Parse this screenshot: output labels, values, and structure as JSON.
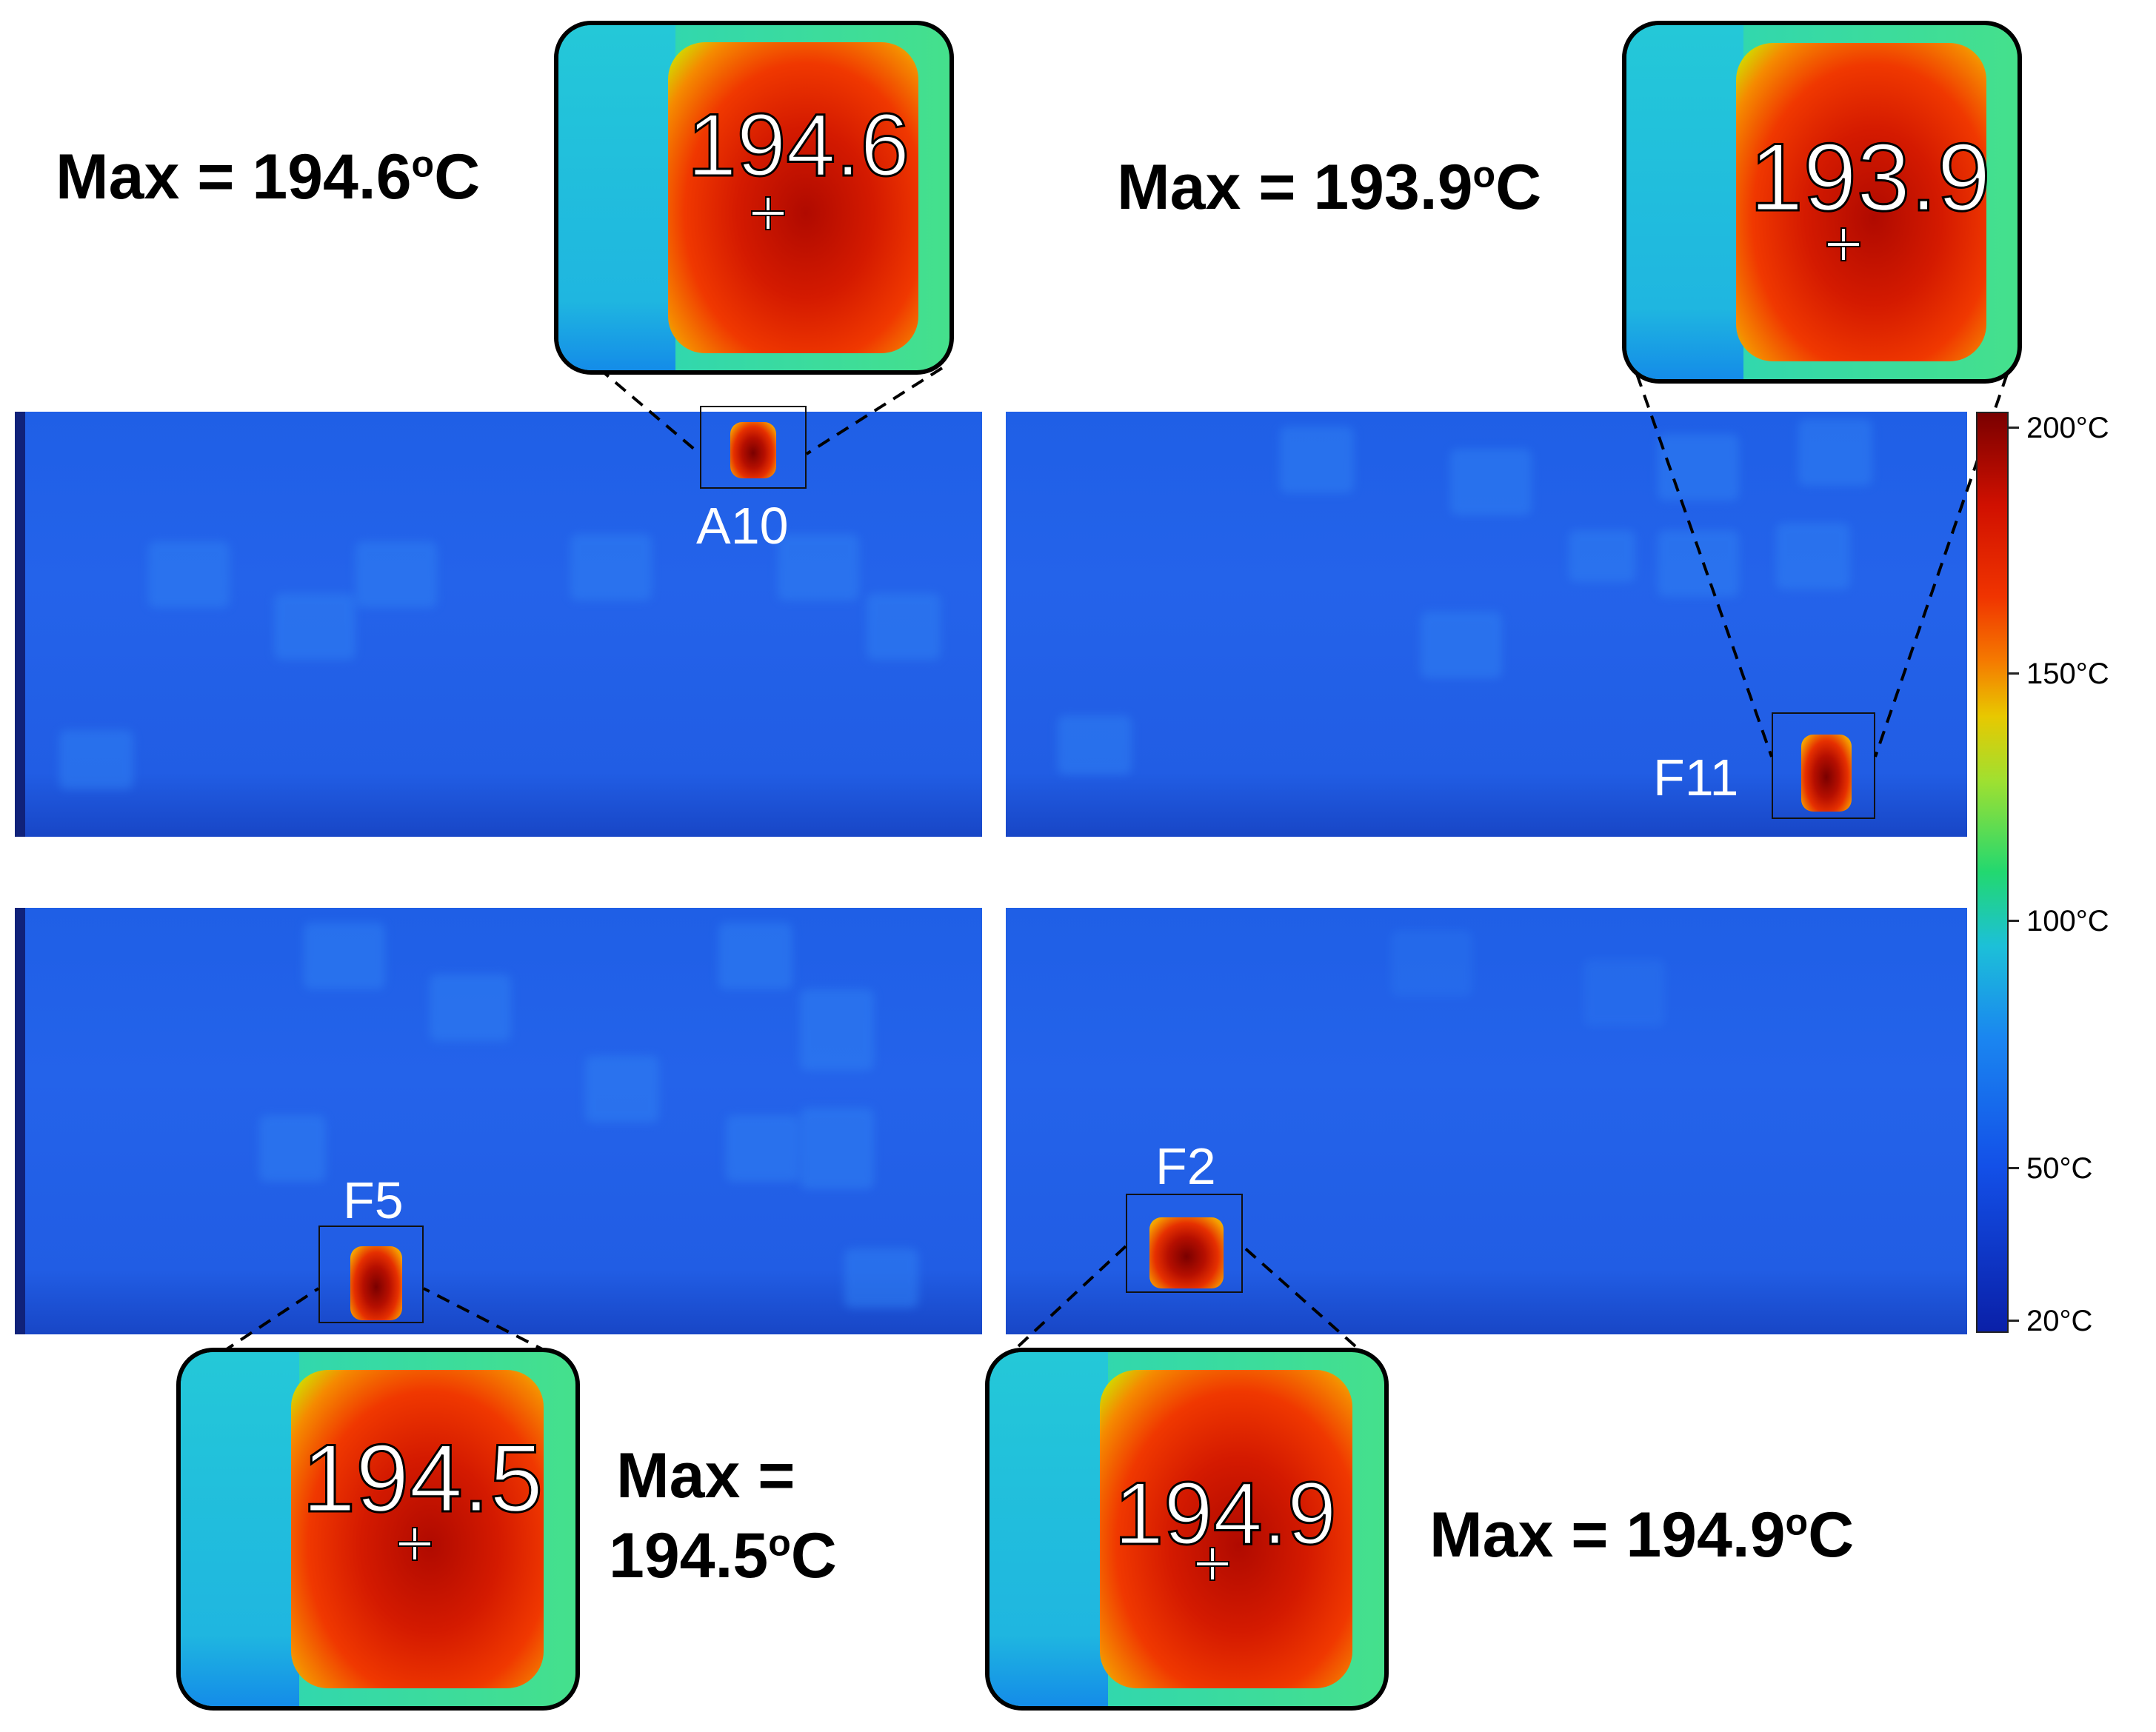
{
  "zooms": [
    {
      "value": "194.6",
      "max_prefix": "Max = ",
      "max_value": "194.6",
      "max_unit": "oC"
    },
    {
      "value": "193.9",
      "max_prefix": "Max = ",
      "max_value": "193.9",
      "max_unit": "oC"
    },
    {
      "value": "194.5",
      "max_prefix": "Max =",
      "max_value": "194.5",
      "max_unit": "oC"
    },
    {
      "value": "194.9",
      "max_prefix": "Max = ",
      "max_value": "194.9",
      "max_unit": "oC"
    }
  ],
  "panel_labels": [
    "A10",
    "F11",
    "F5",
    "F2"
  ],
  "colorbar": {
    "labels": [
      "200°C",
      "150°C",
      "100°C",
      "50°C",
      "20°C"
    ],
    "colors": [
      "#7a0000",
      "#f03400",
      "#e8c800",
      "#22d870",
      "#1cc0d8",
      "#1350e8",
      "#0a20a8"
    ]
  }
}
